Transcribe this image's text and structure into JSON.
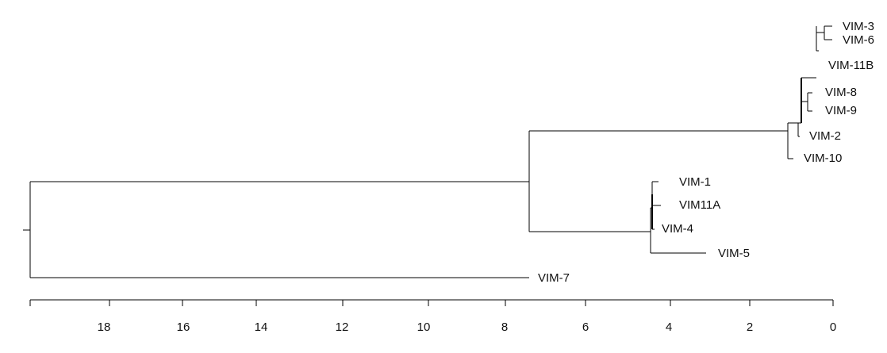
{
  "leaves": {
    "vim3": "VIM-3",
    "vim6": "VIM-6",
    "vim11b": "VIM-11B",
    "vim8": "VIM-8",
    "vim9": "VIM-9",
    "vim2": "VIM-2",
    "vim10": "VIM-10",
    "vim1": "VIM-1",
    "vim11a": "VIM11A",
    "vim4": "VIM-4",
    "vim5": "VIM-5",
    "vim7": "VIM-7"
  },
  "axis": {
    "ticks": [
      "18",
      "16",
      "14",
      "12",
      "10",
      "8",
      "6",
      "4",
      "2",
      "0"
    ]
  }
}
